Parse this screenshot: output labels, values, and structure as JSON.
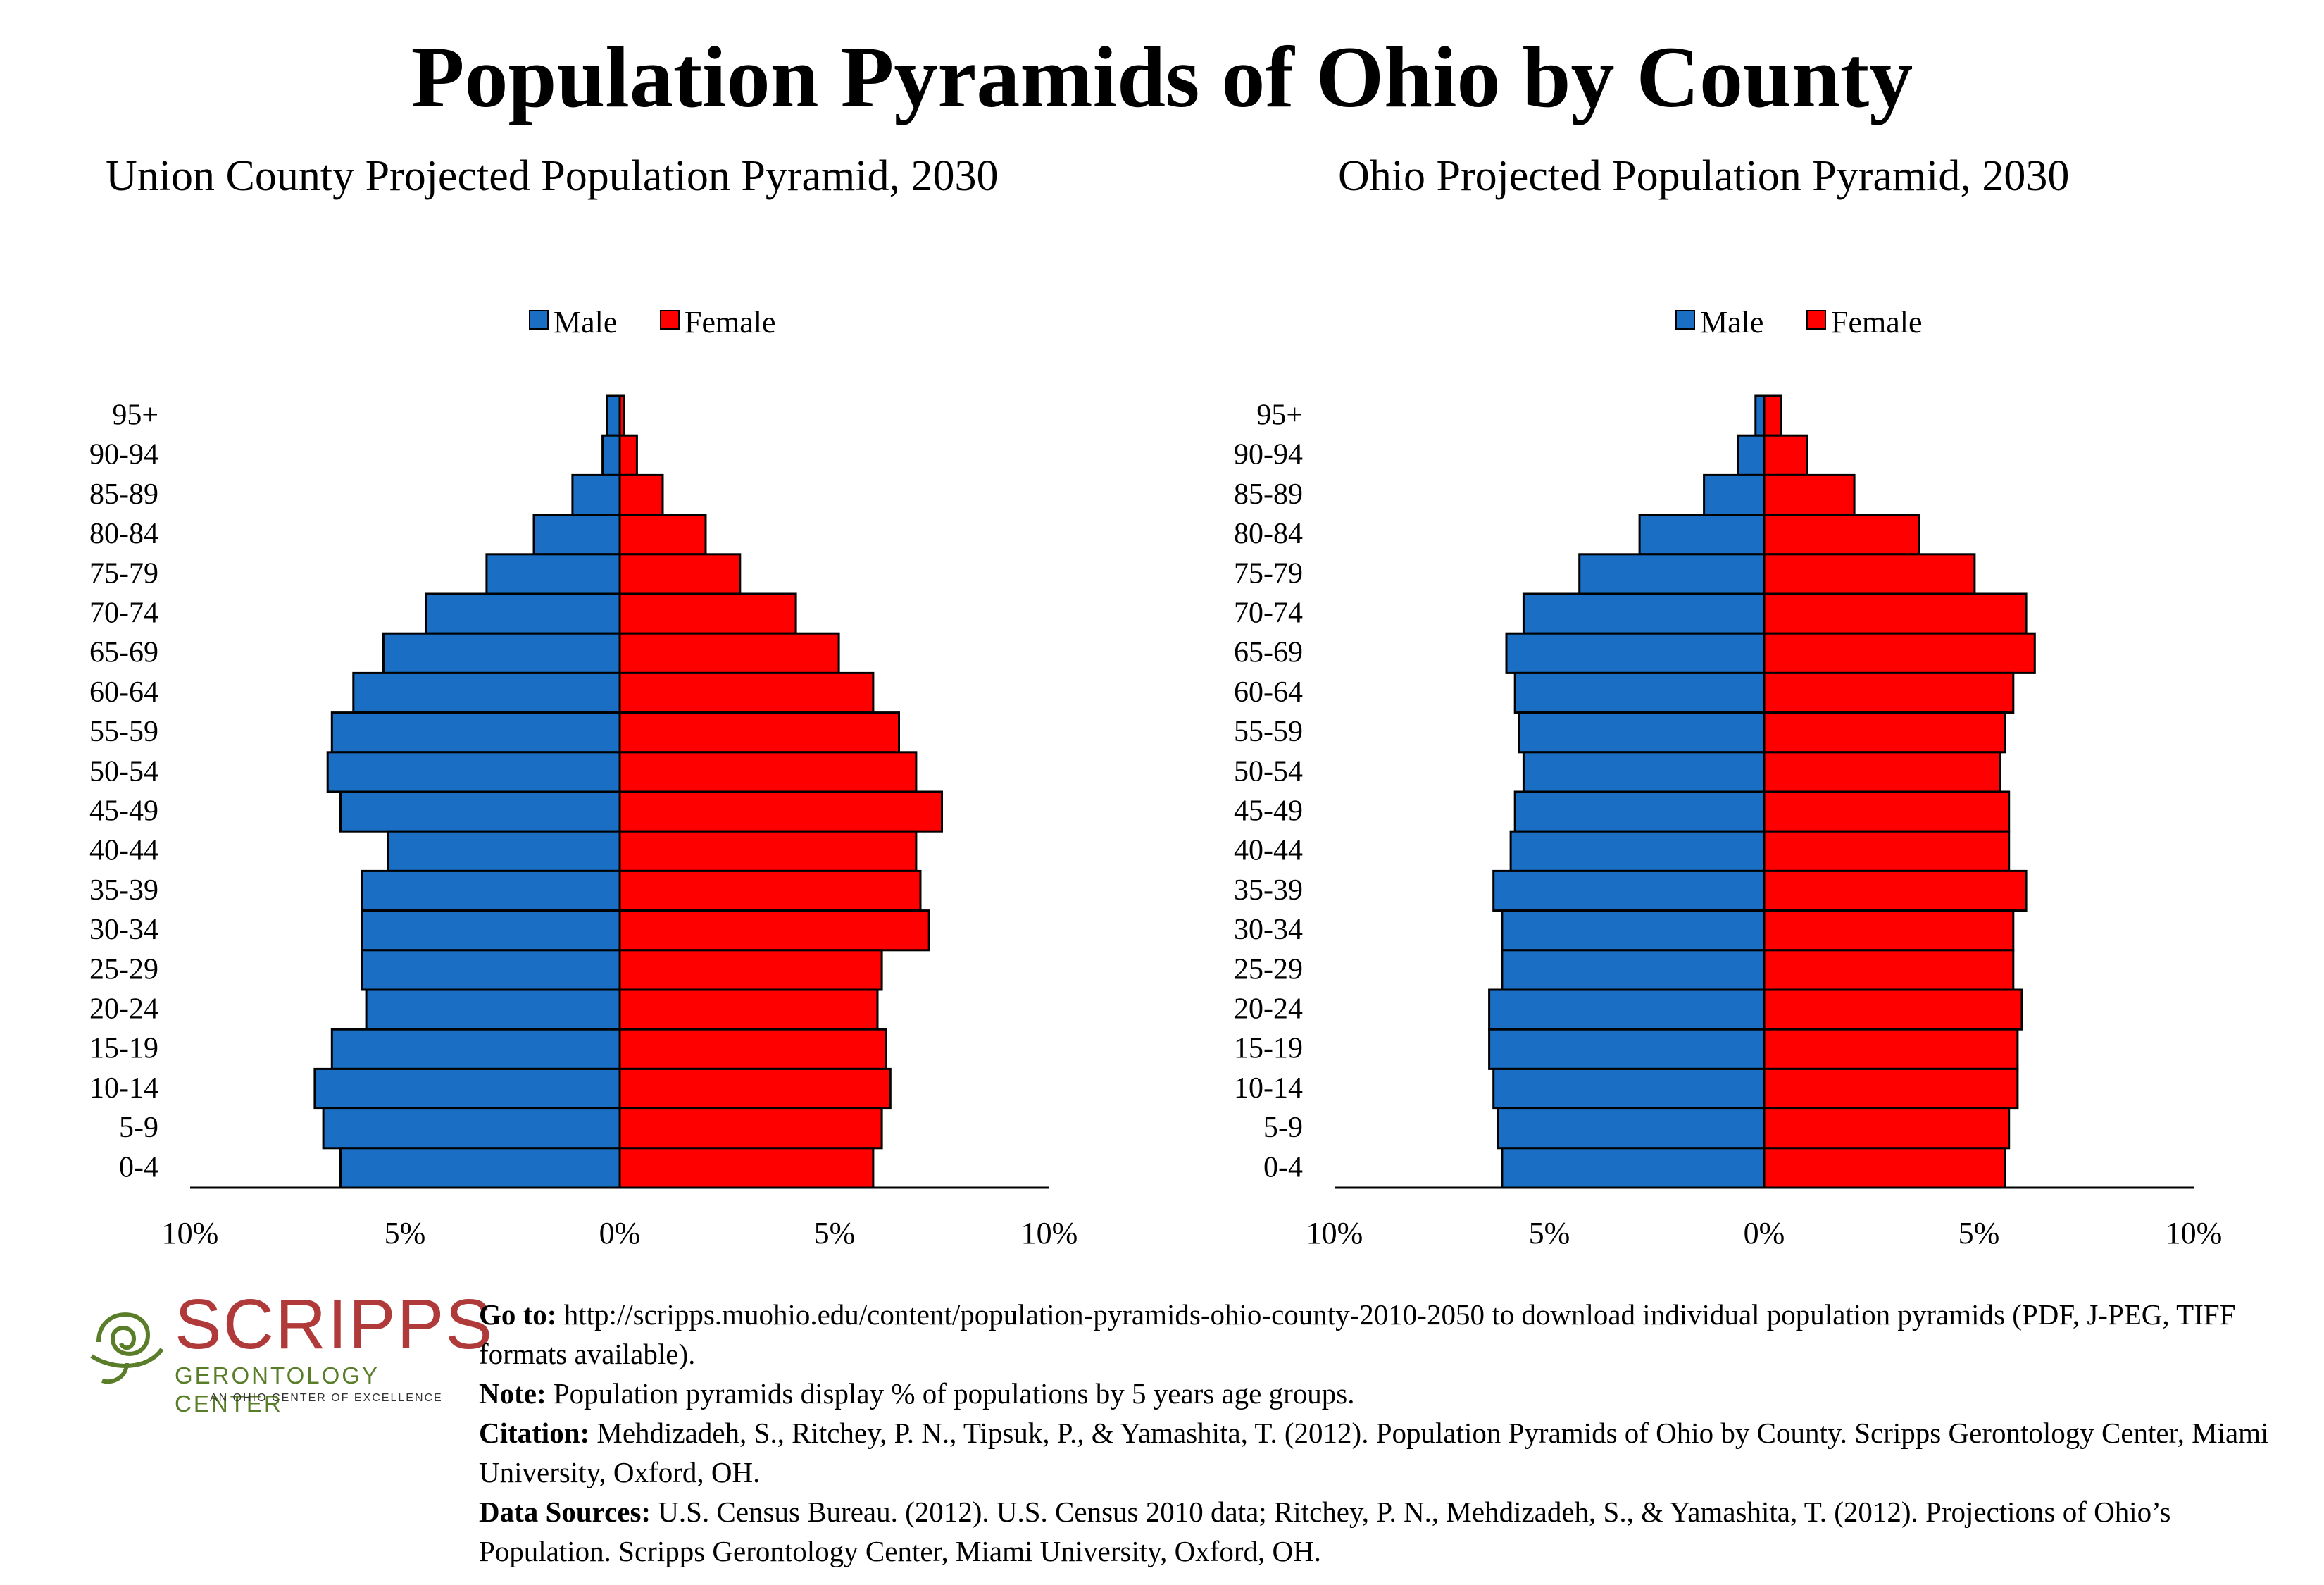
{
  "title": "Population Pyramids of Ohio by County",
  "colors": {
    "male": "#1a6fc4",
    "female": "#ff0000",
    "outline": "#000000"
  },
  "logo": {
    "word": "SCRIPPS",
    "sub": "GERONTOLOGY CENTER",
    "tag": "AN OHIO CENTER OF EXCELLENCE"
  },
  "footer": {
    "goto_label": "Go to:",
    "goto_text": "http://scripps.muohio.edu/content/population-pyramids-ohio-county-2010-2050 to download individual population pyramids (PDF, J-PEG, TIFF formats available).",
    "note_label": "Note:",
    "note_text": "Population pyramids display % of populations by 5 years age groups.",
    "citation_label": "Citation:",
    "citation_text": "Mehdizadeh, S., Ritchey, P. N., Tipsuk, P., & Yamashita, T. (2012). Population Pyramids of Ohio by County. Scripps Gerontology Center, Miami University, Oxford, OH.",
    "sources_label": "Data Sources:",
    "sources_text": "U.S. Census Bureau. (2012). U.S. Census 2010 data; Ritchey, P. N., Mehdizadeh, S., & Yamashita, T. (2012). Projections of Ohio’s Population. Scripps Gerontology Center, Miami University, Oxford, OH."
  },
  "chart_data": [
    {
      "type": "bar",
      "title": "Union County Projected Population Pyramid, 2030",
      "categories": [
        "95+",
        "90-94",
        "85-89",
        "80-84",
        "75-79",
        "70-74",
        "65-69",
        "60-64",
        "55-59",
        "50-54",
        "45-49",
        "40-44",
        "35-39",
        "30-34",
        "25-29",
        "20-24",
        "15-19",
        "10-14",
        "5-9",
        "0-4"
      ],
      "series": [
        {
          "name": "Male",
          "values": [
            0.3,
            0.4,
            1.1,
            2.0,
            3.1,
            4.5,
            5.5,
            6.2,
            6.7,
            6.8,
            6.5,
            5.4,
            6.0,
            6.0,
            6.0,
            5.9,
            6.7,
            7.1,
            6.9,
            6.5
          ]
        },
        {
          "name": "Female",
          "values": [
            0.1,
            0.4,
            1.0,
            2.0,
            2.8,
            4.1,
            5.1,
            5.9,
            6.5,
            6.9,
            7.5,
            6.9,
            7.0,
            7.2,
            6.1,
            6.0,
            6.2,
            6.3,
            6.1,
            5.9
          ]
        }
      ],
      "xticks": [
        "10%",
        "5%",
        "0%",
        "5%",
        "10%"
      ],
      "xlim": [
        -10,
        10
      ],
      "legend": "top-center"
    },
    {
      "type": "bar",
      "title": "Ohio Projected Population Pyramid, 2030",
      "categories": [
        "95+",
        "90-94",
        "85-89",
        "80-84",
        "75-79",
        "70-74",
        "65-69",
        "60-64",
        "55-59",
        "50-54",
        "45-49",
        "40-44",
        "35-39",
        "30-34",
        "25-29",
        "20-24",
        "15-19",
        "10-14",
        "5-9",
        "0-4"
      ],
      "series": [
        {
          "name": "Male",
          "values": [
            0.2,
            0.6,
            1.4,
            2.9,
            4.3,
            5.6,
            6.0,
            5.8,
            5.7,
            5.6,
            5.8,
            5.9,
            6.3,
            6.1,
            6.1,
            6.4,
            6.4,
            6.3,
            6.2,
            6.1
          ]
        },
        {
          "name": "Female",
          "values": [
            0.4,
            1.0,
            2.1,
            3.6,
            4.9,
            6.1,
            6.3,
            5.8,
            5.6,
            5.5,
            5.7,
            5.7,
            6.1,
            5.8,
            5.8,
            6.0,
            5.9,
            5.9,
            5.7,
            5.6
          ]
        }
      ],
      "xticks": [
        "10%",
        "5%",
        "0%",
        "5%",
        "10%"
      ],
      "xlim": [
        -10,
        10
      ],
      "legend": "top-center"
    }
  ]
}
